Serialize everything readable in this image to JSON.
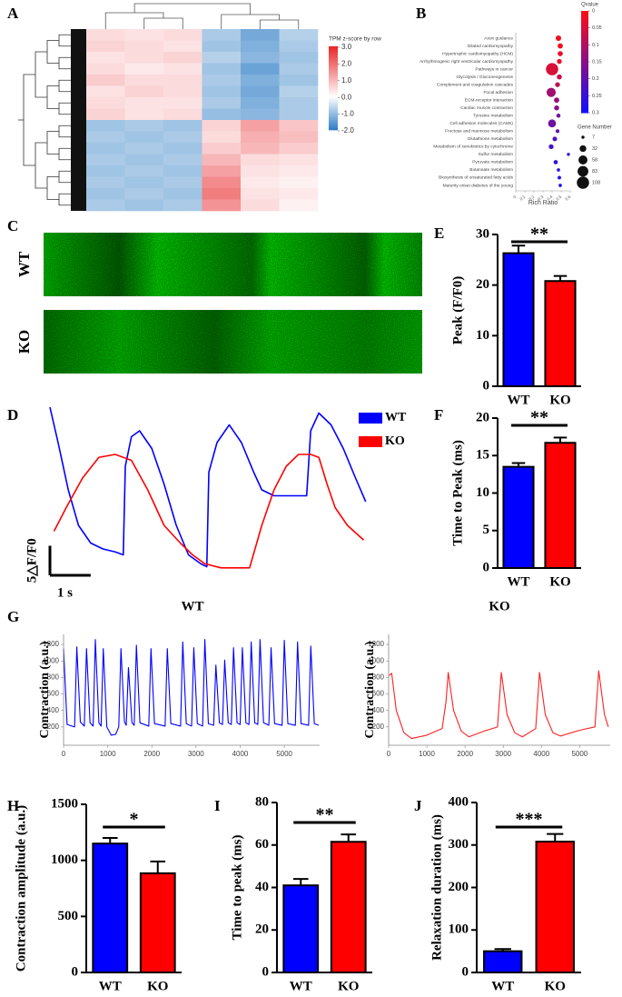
{
  "chart_data": [
    {
      "type": "heatmap",
      "panel": "A",
      "colorbar_title": "TPM z-score by row",
      "zlim": [
        -2,
        3
      ],
      "zticks": [
        {
          "value": 3,
          "label": "3.0"
        },
        {
          "value": 2,
          "label": "2.0"
        },
        {
          "value": 1,
          "label": "1.0"
        },
        {
          "value": 0,
          "label": "0.0"
        },
        {
          "value": -1,
          "label": "-1.0"
        },
        {
          "value": -2,
          "label": "-2.0"
        }
      ],
      "colors": [
        "#2c7bc4",
        "#ffffff",
        "#e8262a"
      ],
      "values": [
        [
          0.5,
          0.4,
          0.5,
          -0.8,
          -1.3,
          -0.7
        ],
        [
          0.6,
          0.5,
          0.4,
          -0.9,
          -1.2,
          -0.8
        ],
        [
          0.4,
          0.5,
          0.6,
          -0.7,
          -1.1,
          -0.9
        ],
        [
          0.5,
          0.3,
          0.4,
          -0.9,
          -1.4,
          -0.8
        ],
        [
          0.7,
          0.5,
          0.5,
          -0.8,
          -1.2,
          -0.9
        ],
        [
          0.4,
          0.6,
          0.5,
          -0.9,
          -1.3,
          -0.7
        ],
        [
          0.5,
          0.4,
          0.4,
          -0.8,
          -1.2,
          -0.8
        ],
        [
          0.6,
          0.4,
          0.5,
          -1.0,
          -1.1,
          -0.8
        ],
        [
          -0.9,
          -0.8,
          -0.9,
          0.6,
          1.3,
          0.8
        ],
        [
          -0.8,
          -0.9,
          -0.8,
          0.5,
          1.1,
          0.9
        ],
        [
          -0.9,
          -0.8,
          -0.9,
          0.7,
          1.0,
          0.7
        ],
        [
          -0.8,
          -0.9,
          -0.8,
          1.0,
          0.5,
          0.4
        ],
        [
          -0.9,
          -0.8,
          -0.9,
          1.3,
          0.4,
          0.3
        ],
        [
          -0.8,
          -0.9,
          -0.8,
          1.6,
          0.3,
          0.2
        ],
        [
          -0.9,
          -0.8,
          -0.9,
          1.8,
          0.4,
          0.3
        ],
        [
          -0.8,
          -0.9,
          -0.8,
          1.5,
          0.5,
          0.2
        ]
      ]
    },
    {
      "type": "dotplot",
      "panel": "B",
      "categories": [
        "Axon guidance",
        "Dilated cardiomyopathy",
        "Hypertrophic cardiomyopathy (HCM)",
        "Arrhythmogenic right ventricular cardiomyopathy",
        "Pathways in cancer",
        "Glycolysis / Gluconeogenesis",
        "Complement and coagulation cascades",
        "Focal adhesion",
        "ECM-receptor interaction",
        "Cardiac muscle contraction",
        "Tyrosine metabolism",
        "Cell adhesion molecules (CAMs)",
        "Fructose and mannose metabolism",
        "Glutathione metabolism",
        "Metabolism of xenobiotics by cytochrome",
        "Sulfur metabolism",
        "Pyruvate metabolism",
        "Butanoate metabolism",
        "Biosynthesis of unsaturated fatty acids",
        "Maturity onset diabetes of the young"
      ],
      "rich_ratio": [
        0.47,
        0.49,
        0.49,
        0.48,
        0.4,
        0.48,
        0.46,
        0.39,
        0.45,
        0.45,
        0.47,
        0.4,
        0.46,
        0.43,
        0.39,
        0.58,
        0.44,
        0.47,
        0.48,
        0.49
      ],
      "qvalue": [
        0.02,
        0.02,
        0.03,
        0.03,
        0.05,
        0.07,
        0.08,
        0.12,
        0.13,
        0.15,
        0.17,
        0.18,
        0.2,
        0.22,
        0.23,
        0.25,
        0.26,
        0.27,
        0.28,
        0.29
      ],
      "gene_number": [
        22,
        20,
        19,
        17,
        108,
        18,
        17,
        60,
        20,
        18,
        12,
        45,
        10,
        15,
        17,
        7,
        13,
        8,
        9,
        8
      ],
      "xlim": [
        0,
        0.6
      ],
      "xticks": [
        0,
        0.1,
        0.2,
        0.3,
        0.4,
        0.5,
        0.6
      ],
      "xlabel": "Rich Ratio",
      "qvalue_title": "Qvalue",
      "qlim": [
        0,
        0.3
      ],
      "qticks": [
        0,
        0.05,
        0.1,
        0.15,
        0.2,
        0.25,
        0.3
      ],
      "qcolors": [
        "#ff1010",
        "#1010ff"
      ],
      "size_title": "Gene Number",
      "size_ticks": [
        7,
        32,
        58,
        83,
        108
      ]
    },
    {
      "type": "linescan",
      "panel": "C",
      "labels": [
        "WT",
        "KO"
      ]
    },
    {
      "type": "bar",
      "panel": "E",
      "ylabel": "Peak (F/F0)",
      "categories": [
        "WT",
        "KO"
      ],
      "values": [
        26.3,
        20.8
      ],
      "errors": [
        1.5,
        1.0
      ],
      "colors": [
        "#0000ff",
        "#ff0000"
      ],
      "ylim": [
        0,
        30
      ],
      "yticks": [
        0,
        10,
        20,
        30
      ],
      "significance": "**"
    },
    {
      "type": "trace",
      "panel": "D",
      "xlim": [
        0,
        7.8
      ],
      "ylim": [
        0,
        28
      ],
      "series": [
        {
          "name": "WT",
          "color": "#0000ff",
          "x": [
            0,
            0.2,
            0.45,
            0.7,
            1.0,
            1.3,
            1.6,
            1.8,
            1.85,
            2.0,
            2.2,
            2.5,
            2.8,
            3.1,
            3.4,
            3.7,
            3.85,
            3.9,
            4.1,
            4.4,
            4.7,
            5.0,
            5.2,
            5.5,
            5.8,
            6.1,
            6.3,
            6.4,
            6.6,
            6.9,
            7.2,
            7.5,
            7.75
          ],
          "values": [
            28,
            22,
            14,
            8,
            5,
            4,
            3.5,
            3,
            18,
            23,
            24,
            21,
            15,
            8,
            3,
            1.5,
            1,
            17,
            22,
            25,
            22,
            17,
            14,
            13,
            13,
            13,
            13,
            24,
            27,
            25,
            21,
            16,
            12
          ]
        },
        {
          "name": "KO",
          "color": "#ff0000",
          "x": [
            0.1,
            0.4,
            0.8,
            1.2,
            1.6,
            2.0,
            2.4,
            2.8,
            3.2,
            3.5,
            3.8,
            4.2,
            4.6,
            4.9,
            5.2,
            5.5,
            5.8,
            6.1,
            6.4,
            6.6,
            6.8,
            7.0,
            7.3,
            7.7
          ],
          "values": [
            7,
            11,
            16,
            19.5,
            20,
            19,
            14,
            8,
            5,
            3,
            1.5,
            0.8,
            0.8,
            0.8,
            8,
            14,
            18,
            20,
            20,
            19.5,
            15,
            11,
            8,
            5.5
          ]
        }
      ],
      "scale_bar": {
        "y": 5,
        "y_label": "5△F/F0",
        "x": 1,
        "x_label": "1 s"
      }
    },
    {
      "type": "bar",
      "panel": "F",
      "ylabel": "Time to Peak (ms)",
      "categories": [
        "WT",
        "KO"
      ],
      "values": [
        13.5,
        16.7
      ],
      "errors": [
        0.5,
        0.7
      ],
      "colors": [
        "#0000ff",
        "#ff0000"
      ],
      "ylim": [
        0,
        20
      ],
      "yticks": [
        0,
        5,
        10,
        15,
        20
      ],
      "significance": "**"
    },
    {
      "type": "line",
      "panel": "G",
      "title": "WT",
      "ylabel": "Contraction (a.u.)",
      "xlim": [
        0,
        5800
      ],
      "ylim": [
        0,
        1300
      ],
      "xticks": [
        0,
        1000,
        2000,
        3000,
        4000,
        5000
      ],
      "yticks": [
        200,
        400,
        600,
        800,
        1000,
        1200
      ],
      "series": [
        {
          "color": "#0000ff",
          "x": [
            0,
            80,
            250,
            300,
            380,
            470,
            520,
            600,
            670,
            720,
            800,
            850,
            900,
            980,
            1080,
            1180,
            1250,
            1300,
            1380,
            1420,
            1470,
            1550,
            1600,
            1650,
            1730,
            1930,
            1980,
            2060,
            2300,
            2350,
            2430,
            2650,
            2700,
            2780,
            2900,
            2950,
            3030,
            3150,
            3200,
            3280,
            3400,
            3450,
            3530,
            3600,
            3650,
            3730,
            3800,
            3850,
            3930,
            4000,
            4050,
            4130,
            4200,
            4250,
            4330,
            4400,
            4450,
            4530,
            4650,
            4700,
            4780,
            4950,
            5000,
            5080,
            5250,
            5300,
            5380,
            5550,
            5600,
            5680,
            5780
          ],
          "values": [
            1150,
            230,
            200,
            1170,
            260,
            210,
            1150,
            250,
            210,
            1260,
            250,
            210,
            1150,
            200,
            100,
            110,
            200,
            1150,
            260,
            220,
            920,
            250,
            220,
            1190,
            250,
            210,
            1150,
            240,
            210,
            1150,
            240,
            210,
            1230,
            240,
            210,
            1160,
            240,
            210,
            1260,
            240,
            220,
            950,
            250,
            230,
            1010,
            250,
            230,
            1160,
            250,
            230,
            1160,
            250,
            230,
            1230,
            250,
            230,
            1260,
            250,
            220,
            1160,
            240,
            220,
            1250,
            240,
            220,
            1230,
            240,
            220,
            1180,
            240,
            220
          ]
        }
      ]
    },
    {
      "type": "line",
      "title": "KO",
      "ylabel": "Contraction (a.u.)",
      "xlim": [
        0,
        5800
      ],
      "ylim": [
        0,
        1300
      ],
      "xticks": [
        0,
        1000,
        2000,
        3000,
        4000,
        5000
      ],
      "yticks": [
        200,
        400,
        600,
        800,
        1000,
        1200
      ],
      "series": [
        {
          "color": "#ff2020",
          "x": [
            0,
            80,
            200,
            400,
            600,
            1000,
            1400,
            1500,
            1560,
            1700,
            1900,
            2100,
            2500,
            2850,
            2950,
            3100,
            3300,
            3500,
            3850,
            3950,
            4100,
            4300,
            4500,
            5000,
            5400,
            5500,
            5650,
            5750
          ],
          "values": [
            820,
            850,
            400,
            130,
            60,
            100,
            180,
            500,
            860,
            400,
            150,
            80,
            150,
            200,
            860,
            350,
            130,
            80,
            180,
            860,
            350,
            130,
            90,
            160,
            200,
            880,
            350,
            200
          ]
        }
      ]
    },
    {
      "type": "bar",
      "panel": "H",
      "ylabel": "Contraction amplitude (a.u.)",
      "categories": [
        "WT",
        "KO"
      ],
      "values": [
        1150,
        885
      ],
      "errors": [
        50,
        105
      ],
      "colors": [
        "#0000ff",
        "#ff0000"
      ],
      "ylim": [
        0,
        1500
      ],
      "yticks": [
        0,
        500,
        1000,
        1500
      ],
      "significance": "*"
    },
    {
      "type": "bar",
      "panel": "I",
      "ylabel": "Time to peak (ms)",
      "categories": [
        "WT",
        "KO"
      ],
      "values": [
        41,
        61.5
      ],
      "errors": [
        3,
        3.5
      ],
      "colors": [
        "#0000ff",
        "#ff0000"
      ],
      "ylim": [
        0,
        80
      ],
      "yticks": [
        0,
        20,
        40,
        60,
        80
      ],
      "significance": "**"
    },
    {
      "type": "bar",
      "panel": "J",
      "ylabel": "Relaxation duration (ms)",
      "categories": [
        "WT",
        "KO"
      ],
      "values": [
        50,
        308
      ],
      "errors": [
        5,
        18
      ],
      "colors": [
        "#0000ff",
        "#ff0000"
      ],
      "ylim": [
        0,
        400
      ],
      "yticks": [
        0,
        100,
        200,
        300,
        400
      ],
      "significance": "***"
    }
  ]
}
